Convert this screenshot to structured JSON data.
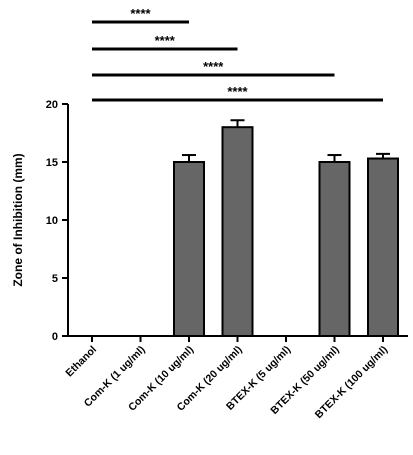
{
  "chart_data": {
    "type": "bar",
    "title": "",
    "xlabel": "",
    "ylabel": "Zone of Inhibition (mm)",
    "ylim": [
      0,
      20
    ],
    "yticks": [
      0,
      5,
      10,
      15,
      20
    ],
    "categories": [
      "Ethanol",
      "Com-K (1 ug/ml)",
      "Com-K (10 ug/ml)",
      "Com-K (20 ug/ml)",
      "BTEX-K (5 ug/ml)",
      "BTEX-K (50 ug/ml)",
      "BTEX-K (100 ug/ml)"
    ],
    "values": [
      0,
      0,
      15.0,
      18.0,
      0,
      15.0,
      15.3
    ],
    "errors": [
      0,
      0,
      0.6,
      0.6,
      0,
      0.6,
      0.4
    ],
    "bar_color": "#666666",
    "grid": false,
    "significance": [
      {
        "from": "Ethanol",
        "to": "Com-K (10 ug/ml)",
        "label": "****"
      },
      {
        "from": "Ethanol",
        "to": "Com-K (20 ug/ml)",
        "label": "****"
      },
      {
        "from": "Ethanol",
        "to": "BTEX-K (50 ug/ml)",
        "label": "****"
      },
      {
        "from": "Ethanol",
        "to": "BTEX-K (100 ug/ml)",
        "label": "****"
      }
    ]
  }
}
